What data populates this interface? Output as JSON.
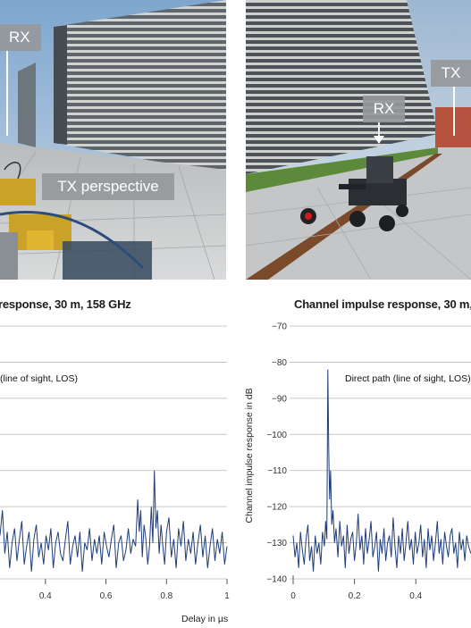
{
  "photos": {
    "left": {
      "rx_label": "RX",
      "tx_label": "TX perspective"
    },
    "right": {
      "tx_label": "TX",
      "rx_label": "RX"
    }
  },
  "chart_data": [
    {
      "type": "line",
      "title": "response, 30 m, 158 GHz",
      "annotation": "(line of sight, LOS)",
      "xlabel": "Delay in µs",
      "ylabel": "",
      "x_ticks": [
        0.4,
        0.6,
        0.8,
        1
      ],
      "xlim": [
        0.25,
        1.0
      ],
      "ylim": [
        -140,
        -70
      ],
      "grid": true,
      "series": [
        {
          "color": "#1f3d7a",
          "x": [
            0.25,
            0.258,
            0.266,
            0.274,
            0.282,
            0.29,
            0.298,
            0.306,
            0.314,
            0.322,
            0.33,
            0.338,
            0.346,
            0.354,
            0.362,
            0.37,
            0.378,
            0.386,
            0.394,
            0.402,
            0.41,
            0.418,
            0.426,
            0.434,
            0.442,
            0.45,
            0.458,
            0.466,
            0.474,
            0.482,
            0.49,
            0.498,
            0.506,
            0.514,
            0.522,
            0.53,
            0.538,
            0.546,
            0.554,
            0.562,
            0.57,
            0.578,
            0.586,
            0.594,
            0.602,
            0.61,
            0.618,
            0.626,
            0.634,
            0.642,
            0.65,
            0.658,
            0.666,
            0.674,
            0.682,
            0.69,
            0.698,
            0.705,
            0.71,
            0.715,
            0.72,
            0.726,
            0.732,
            0.738,
            0.744,
            0.75,
            0.755,
            0.76,
            0.765,
            0.77,
            0.776,
            0.782,
            0.788,
            0.794,
            0.8,
            0.808,
            0.816,
            0.824,
            0.832,
            0.84,
            0.848,
            0.856,
            0.864,
            0.872,
            0.88,
            0.888,
            0.896,
            0.904,
            0.912,
            0.92,
            0.928,
            0.936,
            0.944,
            0.952,
            0.96,
            0.968,
            0.976,
            0.984,
            0.992,
            1.0
          ],
          "y": [
            -128,
            -121,
            -133,
            -127,
            -137,
            -130,
            -126,
            -135,
            -129,
            -124,
            -136,
            -131,
            -127,
            -138,
            -129,
            -125,
            -134,
            -130,
            -136,
            -128,
            -132,
            -126,
            -137,
            -130,
            -127,
            -133,
            -135,
            -129,
            -124,
            -136,
            -131,
            -128,
            -134,
            -127,
            -138,
            -130,
            -132,
            -126,
            -135,
            -129,
            -133,
            -128,
            -136,
            -127,
            -131,
            -134,
            -129,
            -125,
            -137,
            -130,
            -128,
            -135,
            -132,
            -126,
            -133,
            -129,
            -131,
            -118,
            -127,
            -121,
            -134,
            -125,
            -129,
            -136,
            -131,
            -120,
            -130,
            -110,
            -126,
            -121,
            -133,
            -125,
            -131,
            -136,
            -127,
            -123,
            -134,
            -129,
            -137,
            -126,
            -131,
            -124,
            -135,
            -129,
            -133,
            -127,
            -136,
            -130,
            -125,
            -134,
            -128,
            -137,
            -131,
            -126,
            -135,
            -129,
            -133,
            -127,
            -136,
            -131
          ]
        }
      ]
    },
    {
      "type": "line",
      "title": "Channel impulse response, 30 m,",
      "annotation": "Direct path (line of sight, LOS)",
      "xlabel": "",
      "ylabel": "Channel impulse response in dB",
      "x_ticks": [
        0,
        0.2,
        0.4
      ],
      "y_ticks": [
        -70,
        -80,
        -90,
        -100,
        -110,
        -120,
        -130,
        -140
      ],
      "xlim": [
        0,
        0.58
      ],
      "ylim": [
        -140,
        -70
      ],
      "grid": true,
      "series": [
        {
          "color": "#1f3d7a",
          "x": [
            0,
            0.006,
            0.012,
            0.018,
            0.024,
            0.03,
            0.036,
            0.042,
            0.048,
            0.054,
            0.06,
            0.066,
            0.072,
            0.078,
            0.084,
            0.09,
            0.096,
            0.102,
            0.106,
            0.11,
            0.113,
            0.116,
            0.119,
            0.122,
            0.126,
            0.13,
            0.135,
            0.14,
            0.146,
            0.152,
            0.158,
            0.164,
            0.17,
            0.176,
            0.182,
            0.188,
            0.194,
            0.2,
            0.206,
            0.212,
            0.218,
            0.224,
            0.23,
            0.236,
            0.242,
            0.248,
            0.254,
            0.26,
            0.266,
            0.272,
            0.278,
            0.284,
            0.29,
            0.296,
            0.302,
            0.308,
            0.314,
            0.32,
            0.326,
            0.332,
            0.338,
            0.344,
            0.35,
            0.356,
            0.362,
            0.368,
            0.374,
            0.38,
            0.386,
            0.392,
            0.398,
            0.404,
            0.41,
            0.416,
            0.422,
            0.428,
            0.434,
            0.44,
            0.446,
            0.452,
            0.458,
            0.464,
            0.47,
            0.476,
            0.482,
            0.488,
            0.494,
            0.5,
            0.506,
            0.512,
            0.518,
            0.524,
            0.53,
            0.536,
            0.542,
            0.548,
            0.554,
            0.56,
            0.566,
            0.572,
            0.58
          ],
          "y": [
            -128,
            -134,
            -130,
            -137,
            -127,
            -132,
            -136,
            -129,
            -125,
            -135,
            -131,
            -138,
            -128,
            -133,
            -130,
            -136,
            -127,
            -131,
            -124,
            -129,
            -82,
            -104,
            -118,
            -110,
            -125,
            -121,
            -130,
            -126,
            -134,
            -124,
            -131,
            -128,
            -137,
            -125,
            -133,
            -129,
            -127,
            -135,
            -130,
            -122,
            -132,
            -128,
            -136,
            -126,
            -133,
            -129,
            -124,
            -134,
            -131,
            -127,
            -138,
            -129,
            -133,
            -126,
            -135,
            -130,
            -128,
            -134,
            -123,
            -131,
            -137,
            -128,
            -133,
            -126,
            -135,
            -130,
            -124,
            -132,
            -129,
            -136,
            -127,
            -133,
            -130,
            -125,
            -134,
            -129,
            -137,
            -126,
            -132,
            -128,
            -135,
            -130,
            -124,
            -133,
            -129,
            -136,
            -127,
            -131,
            -134,
            -128,
            -126,
            -133,
            -130,
            -137,
            -127,
            -132,
            -129,
            -135,
            -128,
            -131,
            -133
          ]
        }
      ]
    }
  ]
}
